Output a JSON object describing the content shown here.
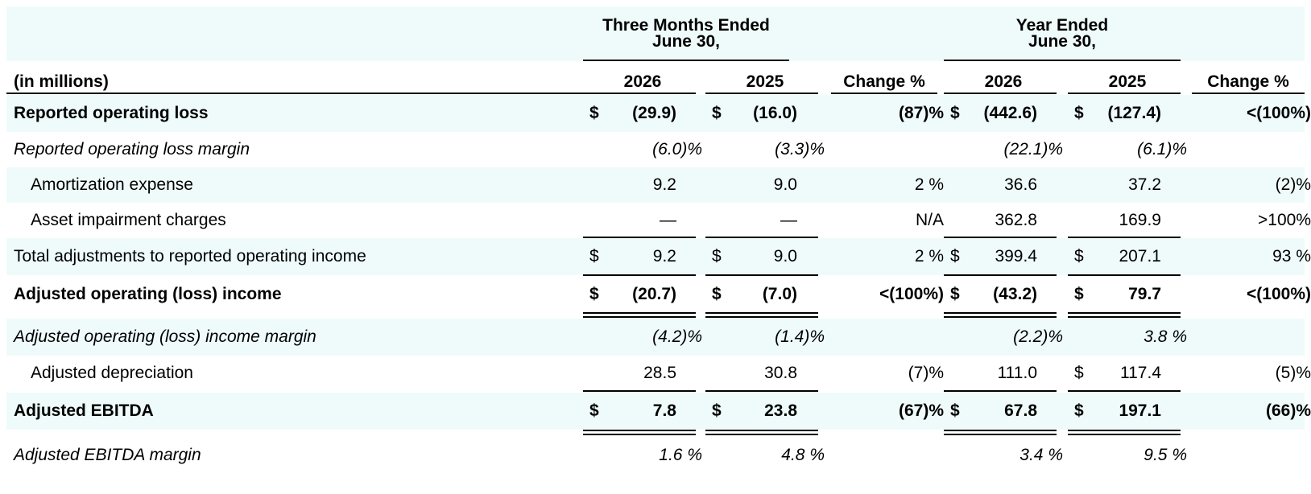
{
  "header": {
    "group_three_months_l1": "Three Months Ended",
    "group_three_months_l2": "June 30,",
    "group_year_l1": "Year Ended",
    "group_year_l2": "June 30,",
    "unit_label": "(in millions)",
    "col_q_2026": "2026",
    "col_q_2025": "2025",
    "col_q_change": "Change %",
    "col_y_2026": "2026",
    "col_y_2025": "2025",
    "col_y_change": "Change %"
  },
  "rows": {
    "r1": {
      "label": "Reported operating loss",
      "d1": "$",
      "q26": "(29.9)",
      "d2": "$",
      "q25": "(16.0)",
      "qchg": "(87)%",
      "d3": "$",
      "y26": "(442.6)",
      "d4": "$",
      "y25": "(127.4)",
      "ychg": "<(100%)"
    },
    "r2": {
      "label": "Reported operating loss margin",
      "q26": "(6.0)%",
      "q25": "(3.3)%",
      "y26": "(22.1)%",
      "y25": "(6.1)%"
    },
    "r3": {
      "label": "Amortization expense",
      "q26": "9.2",
      "q25": "9.0",
      "qchg": "2 %",
      "y26": "36.6",
      "y25": "37.2",
      "ychg": "(2)%"
    },
    "r4": {
      "label": "Asset impairment charges",
      "q26": "—",
      "q25": "—",
      "qchg": "N/A",
      "y26": "362.8",
      "y25": "169.9",
      "ychg": ">100%"
    },
    "r5": {
      "label": "Total adjustments to reported operating income",
      "d1": "$",
      "q26": "9.2",
      "d2": "$",
      "q25": "9.0",
      "qchg": "2 %",
      "d3": "$",
      "y26": "399.4",
      "d4": "$",
      "y25": "207.1",
      "ychg": "93 %"
    },
    "r6": {
      "label": "Adjusted operating (loss) income",
      "d1": "$",
      "q26": "(20.7)",
      "d2": "$",
      "q25": "(7.0)",
      "qchg": "<(100%)",
      "d3": "$",
      "y26": "(43.2)",
      "d4": "$",
      "y25": "79.7",
      "ychg": "<(100%)"
    },
    "r7": {
      "label": "Adjusted operating (loss) income margin",
      "q26": "(4.2)%",
      "q25": "(1.4)%",
      "y26": "(2.2)%",
      "y25": "3.8 %"
    },
    "r8": {
      "label": "Adjusted depreciation",
      "q26": "28.5",
      "q25": "30.8",
      "qchg": "(7)%",
      "y26": "111.0",
      "d4": "$",
      "y25": "117.4",
      "ychg": "(5)%"
    },
    "r9": {
      "label": "Adjusted EBITDA",
      "d1": "$",
      "q26": "7.8",
      "d2": "$",
      "q25": "23.8",
      "qchg": "(67)%",
      "d3": "$",
      "y26": "67.8",
      "d4": "$",
      "y25": "197.1",
      "ychg": "(66)%"
    },
    "r10": {
      "label": "Adjusted EBITDA margin",
      "q26": "1.6 %",
      "q25": "4.8 %",
      "y26": "3.4 %",
      "y25": "9.5 %"
    }
  }
}
